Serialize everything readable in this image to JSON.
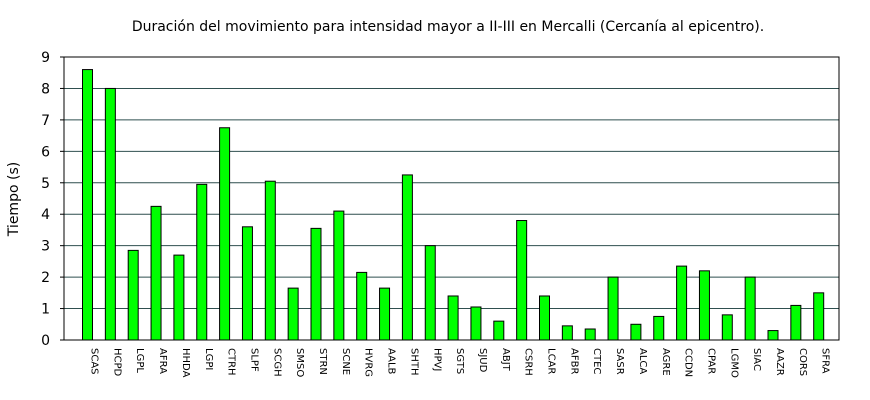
{
  "chart_data": {
    "type": "bar",
    "title": "Duración del movimiento para intensidad mayor a II-III en Mercalli (Cercanía al epicentro).",
    "xlabel": "",
    "ylabel": "Tiempo (s)",
    "ylim": [
      0,
      9
    ],
    "yticks": [
      "0",
      "1",
      "2",
      "3",
      "4",
      "5",
      "6",
      "7",
      "8",
      "9"
    ],
    "grid": "horizontal",
    "bar_color": "#00ff00",
    "categories": [
      "SCAS",
      "HCPD",
      "LGPL",
      "AFRA",
      "HHDA",
      "LGPI",
      "CTRH",
      "SLPF",
      "SCGH",
      "SMSO",
      "STRN",
      "SCNE",
      "HVRG",
      "AALB",
      "SHTH",
      "HPVJ",
      "SGTS",
      "SJUD",
      "ABJT",
      "CSRH",
      "LCAR",
      "AFBR",
      "CTEC",
      "SASR",
      "ALCA",
      "AGRE",
      "CCDN",
      "CPAR",
      "LGMO",
      "SIAC",
      "AAZR",
      "CORS",
      "SFRA"
    ],
    "values": [
      8.6,
      8.0,
      2.85,
      4.25,
      2.7,
      4.95,
      6.75,
      3.6,
      5.05,
      1.65,
      3.55,
      4.1,
      2.15,
      1.65,
      5.25,
      3.0,
      1.4,
      1.05,
      0.6,
      3.8,
      1.4,
      0.45,
      0.35,
      2.0,
      0.5,
      0.75,
      2.35,
      2.2,
      0.8,
      2.0,
      0.3,
      1.1,
      1.5
    ]
  }
}
